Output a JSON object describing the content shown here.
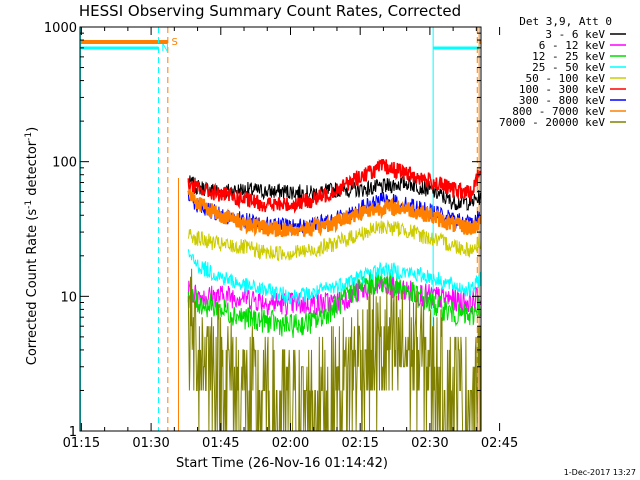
{
  "chart_data": {
    "type": "line",
    "title": "HESSI Observing Summary Count Rates, Corrected",
    "xlabel": "Start Time (26-Nov-16 01:14:42)",
    "ylabel_main": "Corrected Count Rate (s",
    "ylabel_sup1": "-1",
    "ylabel_mid": " detector",
    "ylabel_sup2": "-1",
    "ylabel_end": ")",
    "y_scale": "log",
    "ylim": [
      1,
      1000
    ],
    "y_ticks": [
      {
        "v": 1,
        "label": "1"
      },
      {
        "v": 10,
        "label": "10"
      },
      {
        "v": 100,
        "label": "100"
      },
      {
        "v": 1000,
        "label": "1000"
      }
    ],
    "xlim_min": [
      74.7,
      161.0
    ],
    "x_ticks": [
      {
        "v": 75,
        "label": "01:15"
      },
      {
        "v": 90,
        "label": "01:30"
      },
      {
        "v": 105,
        "label": "01:45"
      },
      {
        "v": 120,
        "label": "02:00"
      },
      {
        "v": 135,
        "label": "02:15"
      },
      {
        "v": 150,
        "label": "02:30"
      },
      {
        "v": 165,
        "label": "02:45"
      }
    ],
    "legend_header": "Det 3,9, Att 0",
    "legend_placement": "top-right, outside plot",
    "series": [
      {
        "name": "3 - 6 keV",
        "color": "#000000",
        "points": [
          [
            98,
            70
          ],
          [
            100,
            65
          ],
          [
            105,
            60
          ],
          [
            110,
            62
          ],
          [
            115,
            60
          ],
          [
            120,
            60
          ],
          [
            125,
            58
          ],
          [
            130,
            62
          ],
          [
            135,
            62
          ],
          [
            140,
            65
          ],
          [
            145,
            70
          ],
          [
            150,
            62
          ],
          [
            155,
            50
          ],
          [
            159,
            50
          ],
          [
            161,
            55
          ]
        ]
      },
      {
        "name": "6 - 12 keV",
        "color": "#ff00ff",
        "points": [
          [
            98,
            11
          ],
          [
            100,
            10
          ],
          [
            105,
            10
          ],
          [
            110,
            10
          ],
          [
            115,
            9
          ],
          [
            120,
            8.8
          ],
          [
            125,
            8.8
          ],
          [
            130,
            9
          ],
          [
            135,
            11
          ],
          [
            140,
            12
          ],
          [
            145,
            11
          ],
          [
            150,
            10
          ],
          [
            155,
            9.5
          ],
          [
            159,
            9
          ],
          [
            161,
            10
          ]
        ]
      },
      {
        "name": "12 - 25 keV",
        "color": "#00dd00",
        "points": [
          [
            98,
            10
          ],
          [
            100,
            9
          ],
          [
            105,
            8
          ],
          [
            110,
            7
          ],
          [
            115,
            6.5
          ],
          [
            120,
            6
          ],
          [
            125,
            6.5
          ],
          [
            130,
            8.5
          ],
          [
            135,
            12
          ],
          [
            140,
            13
          ],
          [
            145,
            11
          ],
          [
            150,
            9
          ],
          [
            155,
            7.5
          ],
          [
            159,
            7
          ],
          [
            161,
            9
          ]
        ]
      },
      {
        "name": "25 - 50 keV",
        "color": "#00ffff",
        "points": [
          [
            98,
            20
          ],
          [
            100,
            17
          ],
          [
            105,
            14
          ],
          [
            110,
            12
          ],
          [
            115,
            11
          ],
          [
            120,
            10
          ],
          [
            125,
            10.5
          ],
          [
            130,
            12
          ],
          [
            135,
            14
          ],
          [
            140,
            16
          ],
          [
            145,
            15
          ],
          [
            150,
            14
          ],
          [
            155,
            12
          ],
          [
            159,
            11
          ],
          [
            161,
            14
          ]
        ]
      },
      {
        "name": "50 - 100 keV",
        "color": "#cccc00",
        "points": [
          [
            98,
            29
          ],
          [
            100,
            27
          ],
          [
            105,
            24
          ],
          [
            110,
            23
          ],
          [
            115,
            21
          ],
          [
            120,
            21
          ],
          [
            125,
            22
          ],
          [
            130,
            25
          ],
          [
            135,
            29
          ],
          [
            140,
            33
          ],
          [
            145,
            31
          ],
          [
            150,
            27
          ],
          [
            155,
            24
          ],
          [
            159,
            22
          ],
          [
            161,
            26
          ]
        ]
      },
      {
        "name": "100 - 300 keV",
        "color": "#ff0000",
        "points": [
          [
            98,
            68
          ],
          [
            100,
            63
          ],
          [
            105,
            57
          ],
          [
            110,
            52
          ],
          [
            115,
            48
          ],
          [
            120,
            48
          ],
          [
            125,
            52
          ],
          [
            130,
            62
          ],
          [
            135,
            78
          ],
          [
            140,
            92
          ],
          [
            145,
            82
          ],
          [
            150,
            72
          ],
          [
            155,
            62
          ],
          [
            159,
            58
          ],
          [
            161,
            90
          ]
        ]
      },
      {
        "name": "300 - 800 keV",
        "color": "#0000ff",
        "points": [
          [
            98,
            55
          ],
          [
            100,
            48
          ],
          [
            105,
            40
          ],
          [
            110,
            37
          ],
          [
            115,
            34
          ],
          [
            120,
            33
          ],
          [
            125,
            34
          ],
          [
            130,
            38
          ],
          [
            135,
            45
          ],
          [
            140,
            52
          ],
          [
            145,
            48
          ],
          [
            150,
            43
          ],
          [
            155,
            37
          ],
          [
            159,
            35
          ],
          [
            161,
            40
          ]
        ]
      },
      {
        "name": "800 - 7000 keV",
        "color": "#ff8000",
        "points": [
          [
            98,
            60
          ],
          [
            100,
            50
          ],
          [
            105,
            40
          ],
          [
            110,
            35
          ],
          [
            115,
            32
          ],
          [
            120,
            31
          ],
          [
            125,
            32
          ],
          [
            130,
            36
          ],
          [
            135,
            42
          ],
          [
            140,
            46
          ],
          [
            145,
            45
          ],
          [
            150,
            40
          ],
          [
            155,
            34
          ],
          [
            159,
            32
          ],
          [
            161,
            36
          ]
        ]
      },
      {
        "name": "7000 - 20000 keV",
        "color": "#808000",
        "points": [
          [
            98,
            6
          ],
          [
            100,
            4
          ],
          [
            105,
            3
          ],
          [
            110,
            2
          ],
          [
            115,
            1.5
          ],
          [
            120,
            1.5
          ],
          [
            125,
            1.5
          ],
          [
            130,
            2
          ],
          [
            135,
            3.5
          ],
          [
            140,
            4
          ],
          [
            145,
            4
          ],
          [
            150,
            3
          ],
          [
            155,
            2
          ],
          [
            159,
            1.5
          ],
          [
            161,
            2
          ]
        ]
      }
    ],
    "annotations": [
      {
        "text": "S",
        "color": "#ff8000"
      },
      {
        "text": "N",
        "color": "#00ffff"
      }
    ],
    "timestamp": "1-Dec-2017 13:27"
  }
}
